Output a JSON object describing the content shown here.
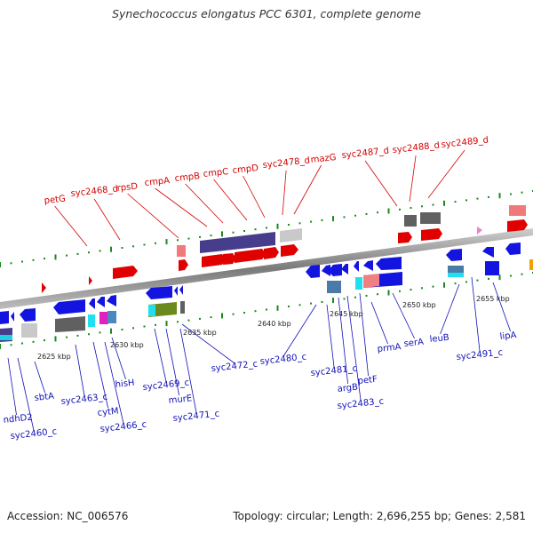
{
  "title": "Synechococcus elongatus PCC 6301, complete genome",
  "footer": {
    "accession": "Accession: NC_006576",
    "topology": "Topology: circular; Length: 2,696,255 bp; Genes: 2,581"
  },
  "colors": {
    "top_label": "#d40000",
    "bottom_label": "#1010b8",
    "backbone": "#8a8a8a",
    "tick": "#1a8a1a"
  },
  "ticks": [
    "2625 kbp",
    "2630 kbp",
    "2635 kbp",
    "2640 kbp",
    "2645 kbp",
    "2650 kbp",
    "2655 kbp"
  ],
  "labels_top": [
    "petG",
    "syc2468_d",
    "rpsD",
    "cmpA",
    "cmpB",
    "cmpC",
    "cmpD",
    "syc2478_d",
    "mazG",
    "syc2487_d",
    "syc2488_d",
    "syc2489_d"
  ],
  "labels_bottom": [
    "ndhD2",
    "syc2460_c",
    "sbtA",
    "syc2463_c",
    "cytM",
    "syc2466_c",
    "hisH",
    "syc2469_c",
    "murE",
    "syc2471_c",
    "syc2472_c",
    "syc2480_c",
    "syc2481_c",
    "argB",
    "syc2483_c",
    "petF",
    "prmA",
    "serA",
    "leuB",
    "syc2491_c",
    "lipA"
  ]
}
